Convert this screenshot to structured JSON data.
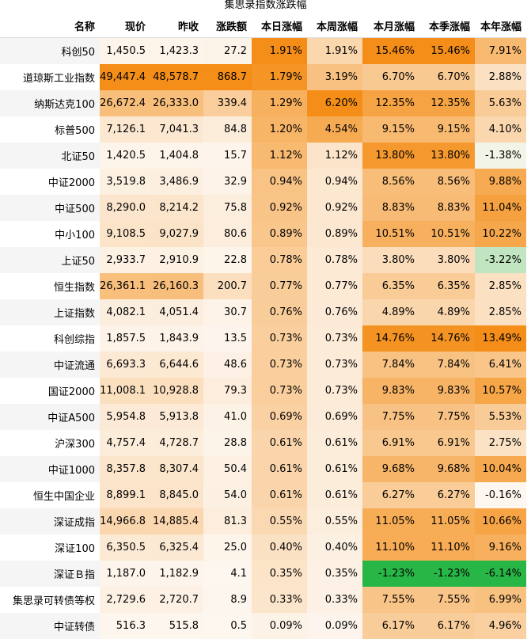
{
  "title": "集思录指数涨跌幅",
  "table": {
    "header": [
      "名称",
      "现价",
      "昨收",
      "涨跌额",
      "本日涨幅",
      "本周涨幅",
      "本月涨幅",
      "本季涨幅",
      "本年涨幅"
    ],
    "rows": [
      [
        "科创50",
        "1,450.5",
        "1,423.3",
        "27.2",
        "1.91%",
        "1.91%",
        "15.46%",
        "15.46%",
        "7.91%"
      ],
      [
        "道琼斯工业指数",
        "49,447.4",
        "48,578.7",
        "868.7",
        "1.79%",
        "3.19%",
        "6.70%",
        "6.70%",
        "2.88%"
      ],
      [
        "纳斯达克100",
        "26,672.4",
        "26,333.0",
        "339.4",
        "1.29%",
        "6.20%",
        "12.35%",
        "12.35%",
        "5.63%"
      ],
      [
        "标普500",
        "7,126.1",
        "7,041.3",
        "84.8",
        "1.20%",
        "4.54%",
        "9.15%",
        "9.15%",
        "4.10%"
      ],
      [
        "北证50",
        "1,420.5",
        "1,404.8",
        "15.7",
        "1.12%",
        "1.12%",
        "13.80%",
        "13.80%",
        "-1.38%"
      ],
      [
        "中证2000",
        "3,519.8",
        "3,486.9",
        "32.9",
        "0.94%",
        "0.94%",
        "8.56%",
        "8.56%",
        "9.88%"
      ],
      [
        "中证500",
        "8,290.0",
        "8,214.2",
        "75.8",
        "0.92%",
        "0.92%",
        "8.83%",
        "8.83%",
        "11.04%"
      ],
      [
        "中小100",
        "9,108.5",
        "9,027.9",
        "80.6",
        "0.89%",
        "0.89%",
        "10.51%",
        "10.51%",
        "10.22%"
      ],
      [
        "上证50",
        "2,933.7",
        "2,910.9",
        "22.8",
        "0.78%",
        "0.78%",
        "3.80%",
        "3.80%",
        "-3.22%"
      ],
      [
        "恒生指数",
        "26,361.1",
        "26,160.3",
        "200.7",
        "0.77%",
        "0.77%",
        "6.35%",
        "6.35%",
        "2.85%"
      ],
      [
        "上证指数",
        "4,082.1",
        "4,051.4",
        "30.7",
        "0.76%",
        "0.76%",
        "4.89%",
        "4.89%",
        "2.85%"
      ],
      [
        "科创综指",
        "1,857.5",
        "1,843.9",
        "13.5",
        "0.73%",
        "0.73%",
        "14.76%",
        "14.76%",
        "13.49%"
      ],
      [
        "中证流通",
        "6,693.3",
        "6,644.6",
        "48.6",
        "0.73%",
        "0.73%",
        "7.84%",
        "7.84%",
        "6.41%"
      ],
      [
        "国证2000",
        "11,008.1",
        "10,928.8",
        "79.3",
        "0.73%",
        "0.73%",
        "9.83%",
        "9.83%",
        "10.57%"
      ],
      [
        "中证A500",
        "5,954.8",
        "5,913.8",
        "41.0",
        "0.69%",
        "0.69%",
        "7.75%",
        "7.75%",
        "5.53%"
      ],
      [
        "沪深300",
        "4,757.4",
        "4,728.7",
        "28.8",
        "0.61%",
        "0.61%",
        "6.91%",
        "6.91%",
        "2.75%"
      ],
      [
        "中证1000",
        "8,357.8",
        "8,307.4",
        "50.4",
        "0.61%",
        "0.61%",
        "9.68%",
        "9.68%",
        "10.04%"
      ],
      [
        "恒生中国企业",
        "8,899.1",
        "8,845.0",
        "54.0",
        "0.61%",
        "0.61%",
        "6.27%",
        "6.27%",
        "-0.16%"
      ],
      [
        "深证成指",
        "14,966.8",
        "14,885.4",
        "81.3",
        "0.55%",
        "0.55%",
        "11.05%",
        "11.05%",
        "10.66%"
      ],
      [
        "深证100",
        "6,350.5",
        "6,325.4",
        "25.0",
        "0.40%",
        "0.40%",
        "11.10%",
        "11.10%",
        "9.16%"
      ],
      [
        "深证Ｂ指",
        "1,187.0",
        "1,182.9",
        "4.1",
        "0.35%",
        "0.35%",
        "-1.23%",
        "-1.23%",
        "-6.14%"
      ],
      [
        "集思录可转债等权",
        "2,729.6",
        "2,720.7",
        "8.9",
        "0.33%",
        "0.33%",
        "7.55%",
        "7.55%",
        "6.99%"
      ],
      [
        "中证转债",
        "516.3",
        "515.8",
        "0.5",
        "0.09%",
        "0.09%",
        "6.17%",
        "6.17%",
        "4.96%"
      ]
    ]
  }
}
